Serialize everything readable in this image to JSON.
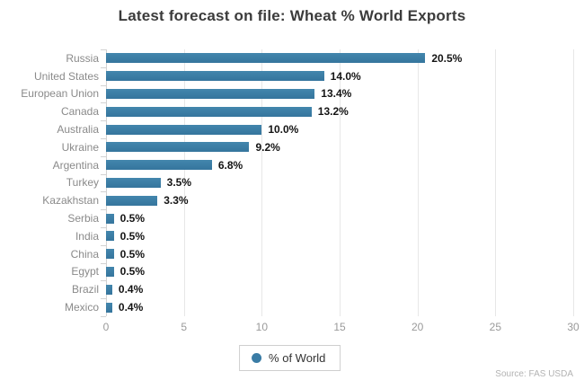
{
  "title": "Latest forecast on file: Wheat % World Exports",
  "legend": {
    "label": "% of World"
  },
  "source": "Source: FAS USDA",
  "colors": {
    "bar": "#3a7ca5",
    "grid": "#e7e7e7",
    "axis": "#d2d2d2",
    "category_label": "#8a8a8a",
    "value_label": "#141414",
    "tick_label": "#9a9a9a",
    "title": "#3b3b3b",
    "source": "#b3b3b3"
  },
  "chart_data": {
    "type": "bar",
    "orientation": "horizontal",
    "title": "Latest forecast on file: Wheat % World Exports",
    "categories": [
      "Russia",
      "United States",
      "European Union",
      "Canada",
      "Australia",
      "Ukraine",
      "Argentina",
      "Turkey",
      "Kazakhstan",
      "Serbia",
      "India",
      "China",
      "Egypt",
      "Brazil",
      "Mexico"
    ],
    "values": [
      20.5,
      14.0,
      13.4,
      13.2,
      10.0,
      9.2,
      6.8,
      3.5,
      3.3,
      0.5,
      0.5,
      0.5,
      0.5,
      0.4,
      0.4
    ],
    "value_labels": [
      "20.5%",
      "14.0%",
      "13.4%",
      "13.2%",
      "10.0%",
      "9.2%",
      "6.8%",
      "3.5%",
      "3.3%",
      "0.5%",
      "0.5%",
      "0.5%",
      "0.5%",
      "0.4%",
      "0.4%"
    ],
    "xlabel": "",
    "ylabel": "",
    "xlim": [
      0,
      30
    ],
    "x_ticks": [
      0,
      5,
      10,
      15,
      20,
      25,
      30
    ],
    "grid": true,
    "legend_entries": [
      "% of World"
    ],
    "legend_position": "bottom"
  }
}
